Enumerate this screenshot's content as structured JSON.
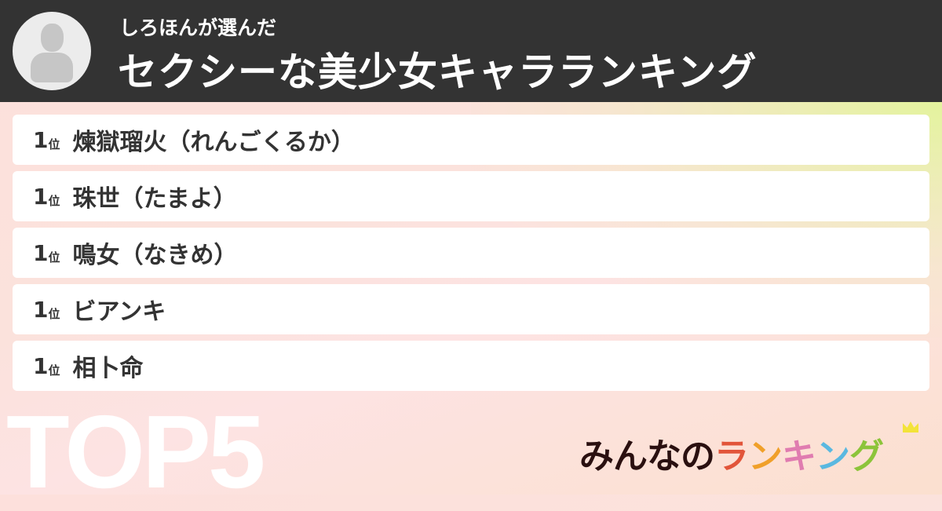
{
  "header": {
    "user_line": "しろほんが選んだ",
    "title": "セクシーな美少女キャラランキング"
  },
  "ranking": [
    {
      "rank": "1",
      "unit": "位",
      "name": "煉獄瑠火（れんごくるか）"
    },
    {
      "rank": "1",
      "unit": "位",
      "name": "珠世（たまよ）"
    },
    {
      "rank": "1",
      "unit": "位",
      "name": "鳴女（なきめ）"
    },
    {
      "rank": "1",
      "unit": "位",
      "name": "ビアンキ"
    },
    {
      "rank": "1",
      "unit": "位",
      "name": "相卜命"
    }
  ],
  "badge": "TOP5",
  "logo": {
    "text": "みんなのランキング",
    "chars": [
      "み",
      "ん",
      "な",
      "の",
      "ラ",
      "ン",
      "キ",
      "ン",
      "グ"
    ],
    "colors": [
      "#2a1010",
      "#2a1010",
      "#2a1010",
      "#2a1010",
      "#e2553a",
      "#f0a02a",
      "#e07cb0",
      "#5ab8e0",
      "#8cc43a"
    ]
  }
}
